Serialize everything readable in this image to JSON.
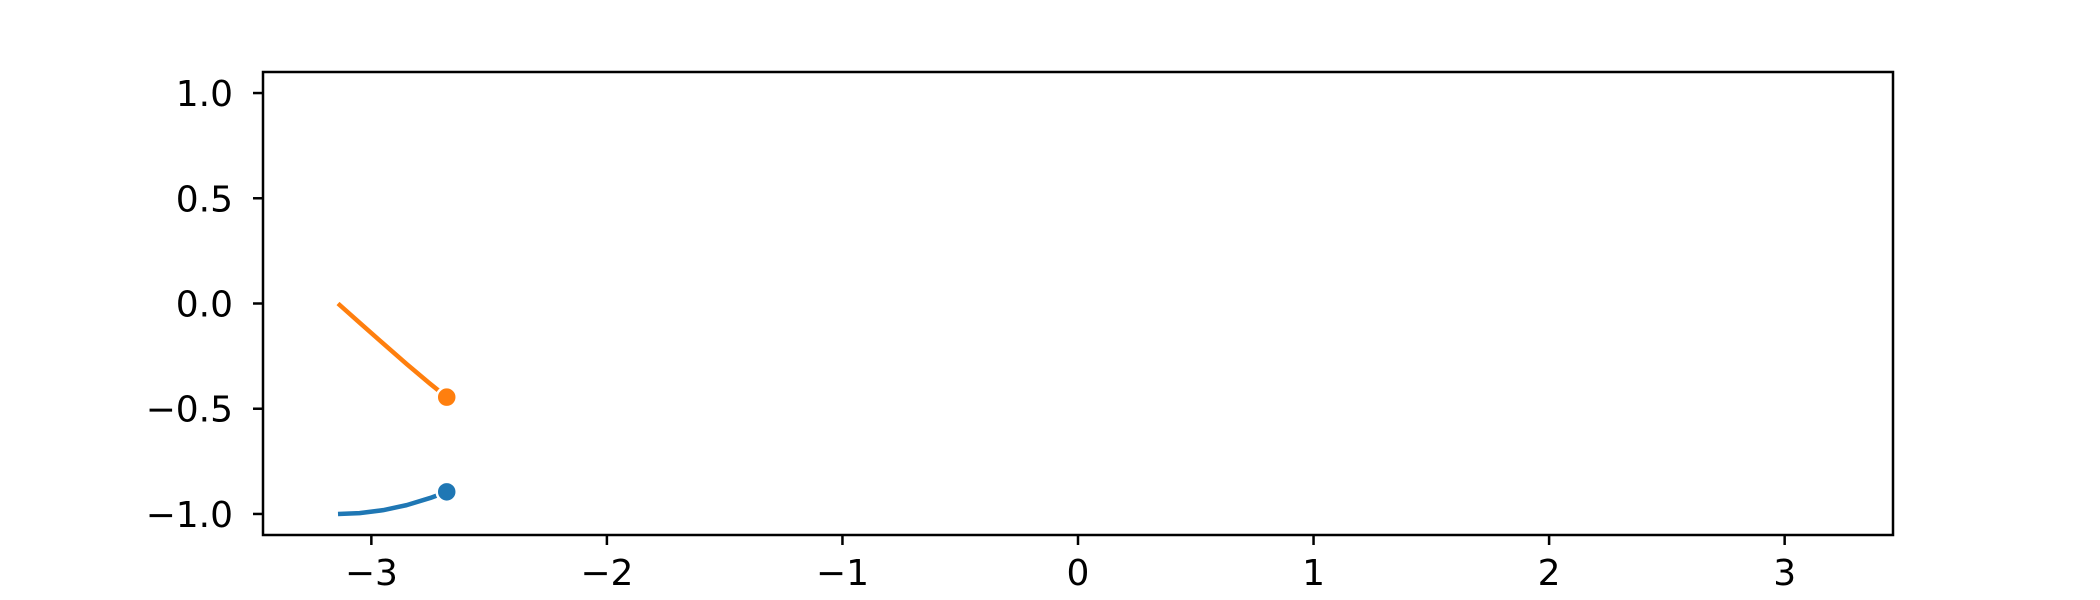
{
  "chart_data": {
    "type": "line",
    "title": "",
    "xlabel": "",
    "ylabel": "",
    "xlim": [
      -3.46,
      3.46
    ],
    "ylim": [
      -1.1,
      1.1
    ],
    "grid": false,
    "x_ticks": [
      -3,
      -2,
      -1,
      0,
      1,
      2,
      3
    ],
    "x_tick_labels": [
      "−3",
      "−2",
      "−1",
      "0",
      "1",
      "2",
      "3"
    ],
    "y_ticks": [
      1.0,
      0.5,
      0.0,
      -0.5,
      -1.0
    ],
    "y_tick_labels": [
      "1.0",
      "0.5",
      "0.0",
      "−0.5",
      "−1.0"
    ],
    "series": [
      {
        "color": "#1f77b4",
        "x": [
          -3.1416,
          -3.05,
          -2.95,
          -2.85,
          -2.75,
          -2.68
        ],
        "y": [
          -1.0,
          -0.996,
          -0.982,
          -0.958,
          -0.924,
          -0.895
        ],
        "endpoint_marker": {
          "x": -2.68,
          "y": -0.895
        }
      },
      {
        "color": "#ff7f0e",
        "x": [
          -3.1416,
          -3.05,
          -2.95,
          -2.85,
          -2.75,
          -2.68
        ],
        "y": [
          0.0,
          -0.091,
          -0.19,
          -0.288,
          -0.382,
          -0.445
        ],
        "endpoint_marker": {
          "x": -2.68,
          "y": -0.445
        }
      }
    ]
  }
}
